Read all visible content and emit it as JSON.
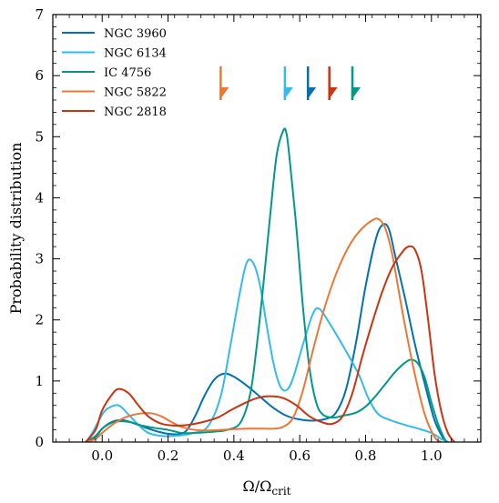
{
  "chart_data": {
    "type": "line",
    "title": "",
    "xlabel": "Ω/Ω",
    "xlabel_sub": "crit",
    "ylabel": "Probability distribution",
    "xlim": [
      -0.15,
      1.15
    ],
    "ylim": [
      0,
      7
    ],
    "xticks": [
      0.0,
      0.2,
      0.4,
      0.6,
      0.8,
      1.0
    ],
    "xtick_labels": [
      "0.0",
      "0.2",
      "0.4",
      "0.6",
      "0.8",
      "1.0"
    ],
    "yticks": [
      0,
      1,
      2,
      3,
      4,
      5,
      6,
      7
    ],
    "ytick_labels": [
      "0",
      "1",
      "2",
      "3",
      "4",
      "5",
      "6",
      "7"
    ],
    "grid": false,
    "legend_position": "top-left",
    "series": [
      {
        "name": "NGC 3960",
        "color": "#0072B2",
        "marker_x": 0.625,
        "points": [
          [
            -0.05,
            0
          ],
          [
            -0.02,
            0.08
          ],
          [
            0.0,
            0.22
          ],
          [
            0.03,
            0.33
          ],
          [
            0.06,
            0.36
          ],
          [
            0.09,
            0.32
          ],
          [
            0.13,
            0.24
          ],
          [
            0.17,
            0.17
          ],
          [
            0.21,
            0.13
          ],
          [
            0.25,
            0.16
          ],
          [
            0.28,
            0.4
          ],
          [
            0.31,
            0.75
          ],
          [
            0.34,
            1.02
          ],
          [
            0.37,
            1.12
          ],
          [
            0.4,
            1.07
          ],
          [
            0.44,
            0.92
          ],
          [
            0.48,
            0.74
          ],
          [
            0.52,
            0.56
          ],
          [
            0.56,
            0.43
          ],
          [
            0.6,
            0.37
          ],
          [
            0.64,
            0.35
          ],
          [
            0.68,
            0.38
          ],
          [
            0.71,
            0.48
          ],
          [
            0.74,
            0.85
          ],
          [
            0.77,
            1.6
          ],
          [
            0.8,
            2.55
          ],
          [
            0.83,
            3.3
          ],
          [
            0.85,
            3.55
          ],
          [
            0.87,
            3.5
          ],
          [
            0.89,
            3.05
          ],
          [
            0.92,
            2.35
          ],
          [
            0.95,
            1.6
          ],
          [
            0.98,
            0.95
          ],
          [
            1.01,
            0.35
          ],
          [
            1.04,
            0.02
          ]
        ]
      },
      {
        "name": "NGC 6134",
        "color": "#33BBEE",
        "marker_x": 0.555,
        "points": [
          [
            -0.05,
            0
          ],
          [
            -0.03,
            0.15
          ],
          [
            0.0,
            0.45
          ],
          [
            0.02,
            0.56
          ],
          [
            0.05,
            0.6
          ],
          [
            0.08,
            0.45
          ],
          [
            0.11,
            0.28
          ],
          [
            0.14,
            0.15
          ],
          [
            0.18,
            0.1
          ],
          [
            0.22,
            0.1
          ],
          [
            0.27,
            0.14
          ],
          [
            0.32,
            0.25
          ],
          [
            0.36,
            0.75
          ],
          [
            0.39,
            1.6
          ],
          [
            0.42,
            2.5
          ],
          [
            0.44,
            2.95
          ],
          [
            0.46,
            2.92
          ],
          [
            0.48,
            2.55
          ],
          [
            0.5,
            1.9
          ],
          [
            0.52,
            1.3
          ],
          [
            0.54,
            0.92
          ],
          [
            0.56,
            0.85
          ],
          [
            0.58,
            1.05
          ],
          [
            0.61,
            1.6
          ],
          [
            0.64,
            2.1
          ],
          [
            0.66,
            2.18
          ],
          [
            0.69,
            1.95
          ],
          [
            0.72,
            1.68
          ],
          [
            0.75,
            1.4
          ],
          [
            0.78,
            1.1
          ],
          [
            0.81,
            0.7
          ],
          [
            0.84,
            0.45
          ],
          [
            0.88,
            0.35
          ],
          [
            0.92,
            0.28
          ],
          [
            0.96,
            0.22
          ],
          [
            1.0,
            0.15
          ],
          [
            1.03,
            0.05
          ],
          [
            1.05,
            0
          ]
        ]
      },
      {
        "name": "IC 4756",
        "color": "#009988",
        "marker_x": 0.76,
        "points": [
          [
            -0.05,
            0
          ],
          [
            -0.02,
            0.1
          ],
          [
            0.0,
            0.22
          ],
          [
            0.03,
            0.32
          ],
          [
            0.06,
            0.34
          ],
          [
            0.09,
            0.32
          ],
          [
            0.12,
            0.27
          ],
          [
            0.16,
            0.23
          ],
          [
            0.2,
            0.2
          ],
          [
            0.24,
            0.15
          ],
          [
            0.28,
            0.15
          ],
          [
            0.34,
            0.17
          ],
          [
            0.38,
            0.2
          ],
          [
            0.42,
            0.32
          ],
          [
            0.45,
            0.8
          ],
          [
            0.47,
            1.6
          ],
          [
            0.49,
            2.6
          ],
          [
            0.51,
            3.7
          ],
          [
            0.53,
            4.7
          ],
          [
            0.55,
            5.1
          ],
          [
            0.56,
            5.05
          ],
          [
            0.57,
            4.6
          ],
          [
            0.59,
            3.5
          ],
          [
            0.61,
            2.2
          ],
          [
            0.63,
            1.2
          ],
          [
            0.65,
            0.65
          ],
          [
            0.67,
            0.45
          ],
          [
            0.7,
            0.4
          ],
          [
            0.73,
            0.43
          ],
          [
            0.77,
            0.48
          ],
          [
            0.8,
            0.58
          ],
          [
            0.83,
            0.75
          ],
          [
            0.86,
            0.95
          ],
          [
            0.89,
            1.15
          ],
          [
            0.92,
            1.3
          ],
          [
            0.94,
            1.35
          ],
          [
            0.96,
            1.28
          ],
          [
            0.98,
            1.05
          ],
          [
            1.0,
            0.65
          ],
          [
            1.02,
            0.3
          ],
          [
            1.04,
            0.05
          ],
          [
            1.05,
            0
          ]
        ]
      },
      {
        "name": "NGC 5822",
        "color": "#EE7733",
        "marker_x": 0.36,
        "points": [
          [
            -0.05,
            0
          ],
          [
            -0.02,
            0.05
          ],
          [
            0.0,
            0.15
          ],
          [
            0.03,
            0.28
          ],
          [
            0.06,
            0.38
          ],
          [
            0.09,
            0.44
          ],
          [
            0.12,
            0.47
          ],
          [
            0.15,
            0.47
          ],
          [
            0.18,
            0.42
          ],
          [
            0.21,
            0.33
          ],
          [
            0.24,
            0.25
          ],
          [
            0.28,
            0.2
          ],
          [
            0.32,
            0.19
          ],
          [
            0.36,
            0.2
          ],
          [
            0.4,
            0.21
          ],
          [
            0.44,
            0.22
          ],
          [
            0.48,
            0.22
          ],
          [
            0.52,
            0.22
          ],
          [
            0.55,
            0.25
          ],
          [
            0.58,
            0.4
          ],
          [
            0.61,
            0.85
          ],
          [
            0.64,
            1.5
          ],
          [
            0.67,
            2.1
          ],
          [
            0.7,
            2.6
          ],
          [
            0.73,
            3.0
          ],
          [
            0.76,
            3.3
          ],
          [
            0.79,
            3.5
          ],
          [
            0.82,
            3.63
          ],
          [
            0.84,
            3.65
          ],
          [
            0.86,
            3.5
          ],
          [
            0.88,
            3.1
          ],
          [
            0.9,
            2.5
          ],
          [
            0.92,
            1.9
          ],
          [
            0.95,
            1.1
          ],
          [
            0.98,
            0.45
          ],
          [
            1.01,
            0.08
          ],
          [
            1.03,
            0
          ]
        ]
      },
      {
        "name": "NGC 2818",
        "color": "#CC3311",
        "marker_x": 0.69,
        "points": [
          [
            -0.05,
            0
          ],
          [
            -0.02,
            0.2
          ],
          [
            0.0,
            0.52
          ],
          [
            0.03,
            0.78
          ],
          [
            0.05,
            0.87
          ],
          [
            0.08,
            0.8
          ],
          [
            0.11,
            0.6
          ],
          [
            0.14,
            0.42
          ],
          [
            0.18,
            0.3
          ],
          [
            0.22,
            0.27
          ],
          [
            0.26,
            0.28
          ],
          [
            0.3,
            0.32
          ],
          [
            0.35,
            0.4
          ],
          [
            0.39,
            0.52
          ],
          [
            0.43,
            0.63
          ],
          [
            0.47,
            0.72
          ],
          [
            0.51,
            0.75
          ],
          [
            0.55,
            0.72
          ],
          [
            0.59,
            0.6
          ],
          [
            0.63,
            0.42
          ],
          [
            0.67,
            0.32
          ],
          [
            0.7,
            0.3
          ],
          [
            0.73,
            0.42
          ],
          [
            0.76,
            0.8
          ],
          [
            0.79,
            1.4
          ],
          [
            0.82,
            1.95
          ],
          [
            0.85,
            2.45
          ],
          [
            0.88,
            2.85
          ],
          [
            0.91,
            3.1
          ],
          [
            0.93,
            3.2
          ],
          [
            0.95,
            3.15
          ],
          [
            0.97,
            2.8
          ],
          [
            0.99,
            2.0
          ],
          [
            1.01,
            1.1
          ],
          [
            1.03,
            0.5
          ],
          [
            1.05,
            0.15
          ],
          [
            1.07,
            0
          ]
        ]
      }
    ]
  }
}
